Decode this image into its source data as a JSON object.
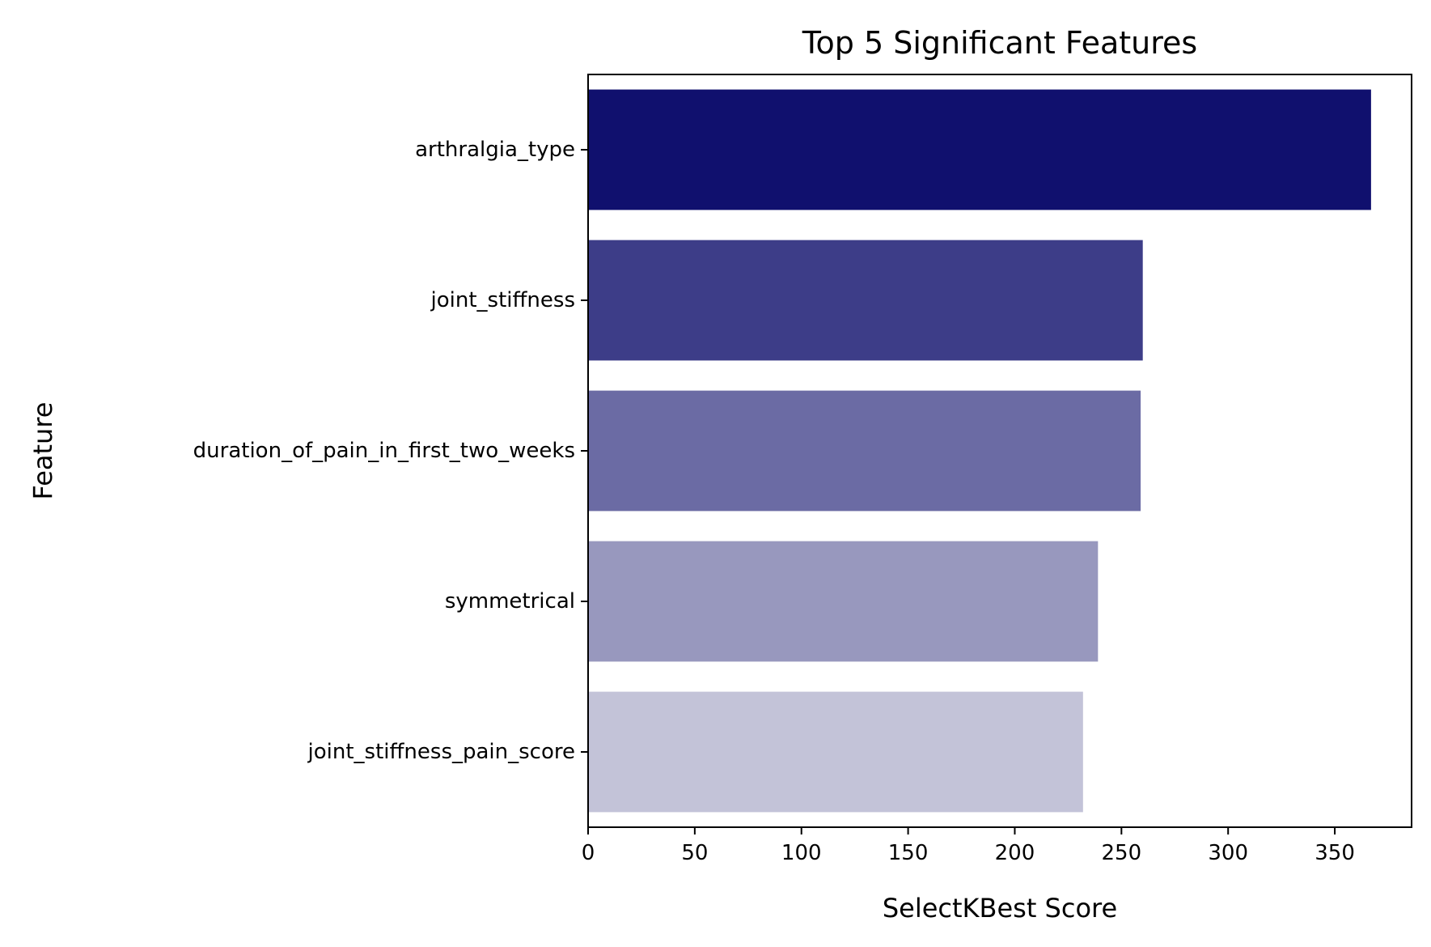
{
  "chart_data": {
    "type": "bar",
    "orientation": "horizontal",
    "title": "Top 5 Significant Features",
    "xlabel": "SelectKBest Score",
    "ylabel": "Feature",
    "categories": [
      "arthralgia_type",
      "joint_stiffness",
      "duration_of_pain_in_first_two_weeks",
      "symmetrical",
      "joint_stiffness_pain_score"
    ],
    "values": [
      367,
      260,
      259,
      239,
      232
    ],
    "colors": [
      "#10106e",
      "#3d3d88",
      "#6b6ba4",
      "#9898be",
      "#c3c3d8"
    ],
    "xlim": [
      0,
      386
    ],
    "xticks": [
      0,
      50,
      100,
      150,
      200,
      250,
      300,
      350
    ],
    "grid": false,
    "legend": "none"
  }
}
